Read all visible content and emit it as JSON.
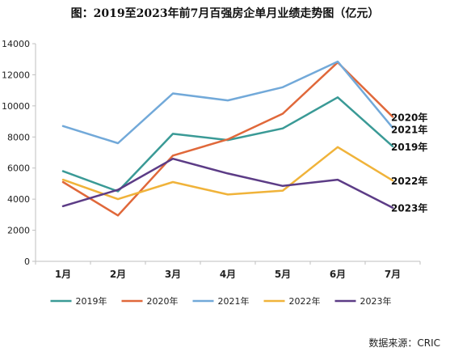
{
  "chart_data": {
    "type": "line",
    "title": "图：2019至2023年前7月百强房企单月业绩走势图（亿元）",
    "categories": [
      "1月",
      "2月",
      "3月",
      "4月",
      "5月",
      "6月",
      "7月"
    ],
    "ylim": [
      0,
      14000
    ],
    "yticks": [
      0,
      2000,
      4000,
      6000,
      8000,
      10000,
      12000,
      14000
    ],
    "grid": false,
    "legend_position": "bottom",
    "series": [
      {
        "name": "2019年",
        "color": "#3a9a96",
        "values": [
          5800,
          4500,
          8200,
          7800,
          8550,
          10550,
          7400
        ]
      },
      {
        "name": "2020年",
        "color": "#e0683a",
        "values": [
          5100,
          2950,
          6800,
          7850,
          9500,
          12800,
          9300
        ]
      },
      {
        "name": "2021年",
        "color": "#72a9d9",
        "values": [
          8700,
          7600,
          10800,
          10350,
          11200,
          12850,
          8600
        ]
      },
      {
        "name": "2022年",
        "color": "#f0b33a",
        "values": [
          5250,
          4000,
          5100,
          4300,
          4550,
          7350,
          5200
        ]
      },
      {
        "name": "2023年",
        "color": "#5c3c86",
        "values": [
          3550,
          4600,
          6600,
          5650,
          4850,
          5250,
          3450
        ]
      }
    ],
    "end_labels": [
      "2019年",
      "2020年",
      "2021年",
      "2022年",
      "2023年"
    ]
  },
  "source_note": "数据来源：CRIC"
}
